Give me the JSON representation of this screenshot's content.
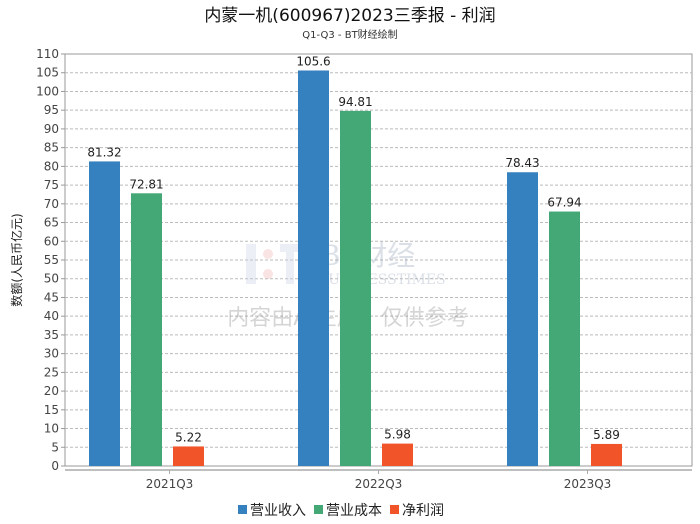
{
  "chart_data": {
    "type": "bar",
    "title": "内蒙一机(600967)2023三季报 - 利润",
    "subtitle": "Q1-Q3 - BT财经绘制",
    "xlabel": "",
    "ylabel": "数额(人民币亿元)",
    "ylim": [
      0,
      110
    ],
    "ytick_step": 5,
    "grid": true,
    "legend_position": "bottom",
    "categories": [
      "2021Q3",
      "2022Q3",
      "2023Q3"
    ],
    "series": [
      {
        "name": "营业收入",
        "color": "#3580BF",
        "values": [
          81.32,
          105.6,
          78.43
        ]
      },
      {
        "name": "营业成本",
        "color": "#44A876",
        "values": [
          72.81,
          94.81,
          67.94
        ]
      },
      {
        "name": "净利润",
        "color": "#F05428",
        "values": [
          5.22,
          5.98,
          5.89
        ]
      }
    ]
  },
  "watermark": {
    "brand": "BT财经",
    "brand_en": "BUSINESSTIMES",
    "notice": "内容由AI生成，仅供参考"
  }
}
